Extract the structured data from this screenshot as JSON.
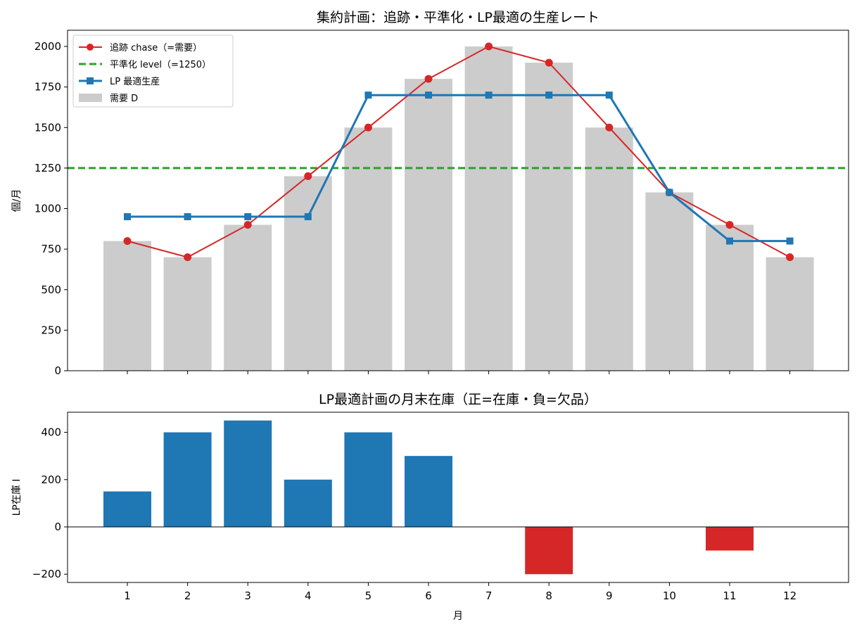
{
  "chart_data": [
    {
      "type": "bar",
      "title": "集約計画：追跡・平準化・LP最適の生産レート",
      "xlabel": "",
      "ylabel": "個/月",
      "categories": [
        1,
        2,
        3,
        4,
        5,
        6,
        7,
        8,
        9,
        10,
        11,
        12
      ],
      "ylim": [
        0,
        2100
      ],
      "yticks": [
        0,
        250,
        500,
        750,
        1000,
        1250,
        1500,
        1750,
        2000
      ],
      "grid": false,
      "legend_position": "top-left",
      "series": [
        {
          "name": "需要 D",
          "type": "bar",
          "color": "#cccccc",
          "values": [
            800,
            700,
            900,
            1200,
            1500,
            1800,
            2000,
            1900,
            1500,
            1100,
            900,
            700
          ]
        },
        {
          "name": "追跡 chase（=需要）",
          "type": "line",
          "marker": "circle",
          "color": "#d62728",
          "values": [
            800,
            700,
            900,
            1200,
            1500,
            1800,
            2000,
            1900,
            1500,
            1100,
            900,
            700
          ]
        },
        {
          "name": "平準化 level（=1250）",
          "type": "hline",
          "style": "dashed",
          "color": "#2ca02c",
          "value": 1250
        },
        {
          "name": "LP 最適生産",
          "type": "line",
          "marker": "square",
          "color": "#1f77b4",
          "values": [
            950,
            950,
            950,
            950,
            1700,
            1700,
            1700,
            1700,
            1700,
            1100,
            800,
            800
          ]
        }
      ]
    },
    {
      "type": "bar",
      "title": "LP最適計画の月末在庫（正=在庫・負=欠品）",
      "xlabel": "月",
      "ylabel": "LP在庫 I",
      "categories": [
        1,
        2,
        3,
        4,
        5,
        6,
        7,
        8,
        9,
        10,
        11,
        12
      ],
      "ylim": [
        -235,
        485
      ],
      "yticks": [
        -200,
        0,
        200,
        400
      ],
      "grid": false,
      "positive_color": "#1f77b4",
      "negative_color": "#d62728",
      "values": [
        150,
        400,
        450,
        200,
        400,
        300,
        0,
        -200,
        0,
        0,
        -100,
        0
      ]
    }
  ]
}
